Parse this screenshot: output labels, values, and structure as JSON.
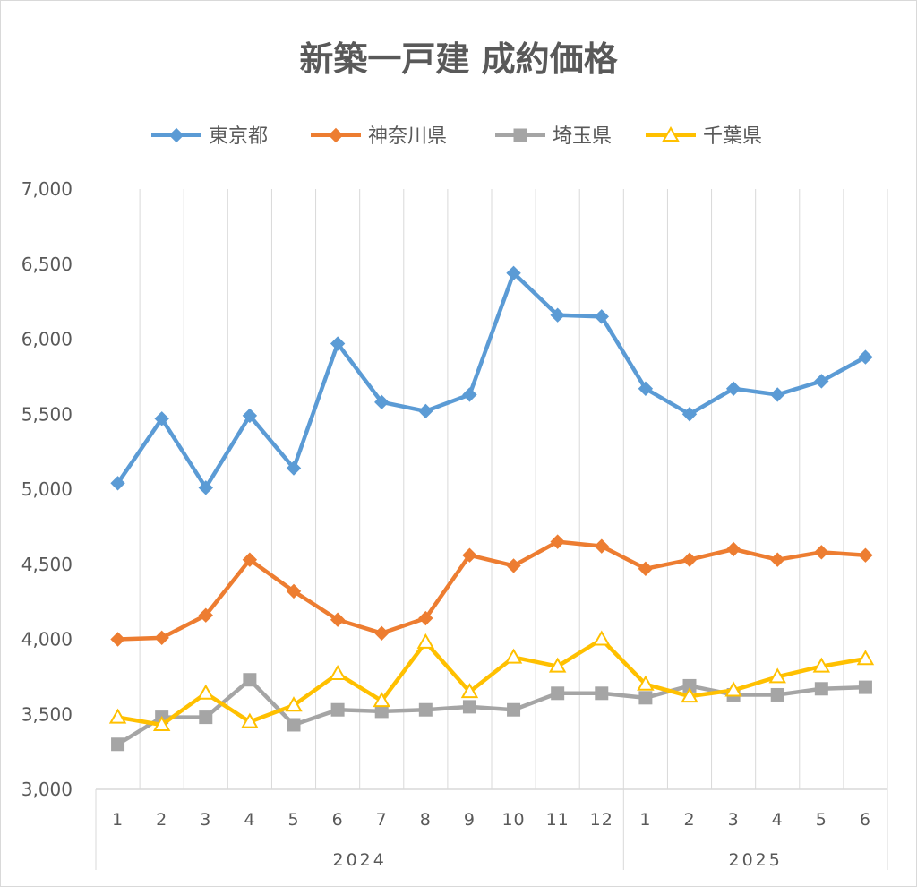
{
  "chart_data": {
    "type": "line",
    "title": "新築一戸建 成約価格",
    "xlabel": "",
    "ylabel": "",
    "ylim": [
      3000,
      7000
    ],
    "yticks": [
      3000,
      3500,
      4000,
      4500,
      5000,
      5500,
      6000,
      6500,
      7000
    ],
    "ytick_labels": [
      "3,000",
      "3,500",
      "4,000",
      "4,500",
      "5,000",
      "5,500",
      "6,000",
      "6,500",
      "7,000"
    ],
    "categories": [
      "1",
      "2",
      "3",
      "4",
      "5",
      "6",
      "7",
      "8",
      "9",
      "10",
      "11",
      "12",
      "1",
      "2",
      "3",
      "4",
      "5",
      "6"
    ],
    "groups": [
      {
        "label": "2024",
        "count": 12
      },
      {
        "label": "2025",
        "count": 6
      }
    ],
    "grid": "vertical",
    "legend_position": "top",
    "series": [
      {
        "name": "東京都",
        "color": "#5b9bd5",
        "marker": "diamond",
        "values": [
          5040,
          5470,
          5010,
          5490,
          5140,
          5970,
          5580,
          5520,
          5630,
          6440,
          6160,
          6150,
          5670,
          5500,
          5670,
          5630,
          5720,
          5880
        ]
      },
      {
        "name": "神奈川県",
        "color": "#ed7d31",
        "marker": "diamond",
        "values": [
          4000,
          4010,
          4160,
          4530,
          4320,
          4130,
          4040,
          4140,
          4560,
          4490,
          4650,
          4620,
          4470,
          4530,
          4600,
          4530,
          4580,
          4560
        ]
      },
      {
        "name": "埼玉県",
        "color": "#a5a5a5",
        "marker": "square",
        "values": [
          3300,
          3480,
          3480,
          3730,
          3430,
          3530,
          3520,
          3530,
          3550,
          3530,
          3640,
          3640,
          3610,
          3690,
          3630,
          3630,
          3670,
          3680
        ]
      },
      {
        "name": "千葉県",
        "color": "#ffc000",
        "marker": "triangle",
        "values": [
          3480,
          3430,
          3640,
          3450,
          3560,
          3770,
          3590,
          3980,
          3650,
          3880,
          3820,
          4000,
          3700,
          3620,
          3660,
          3750,
          3820,
          3870
        ]
      }
    ]
  }
}
